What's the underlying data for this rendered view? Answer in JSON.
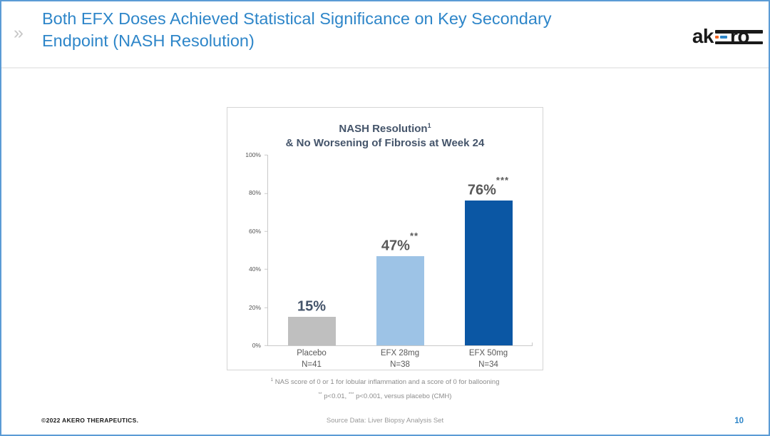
{
  "header": {
    "chevron": "»",
    "title_line1": "Both EFX Doses Achieved Statistical Significance on Key Secondary",
    "title_line2": "Endpoint (NASH Resolution)"
  },
  "logo": {
    "name": "akero",
    "prefix": "ak",
    "suffix": "ro"
  },
  "colors": {
    "slide_border": "#5B9BD5",
    "title_blue": "#2E86C9",
    "logo_orange": "#F26522",
    "logo_blue": "#2E86C9",
    "chart_title": "#44546A"
  },
  "chart_data": {
    "type": "bar",
    "title_line1": "NASH Resolution",
    "title_line1_sup": "1",
    "title_line2": "& No Worsening of Fibrosis at Week 24",
    "categories": [
      "Placebo",
      "EFX 28mg",
      "EFX 50mg"
    ],
    "n_labels": [
      "N=41",
      "N=38",
      "N=34"
    ],
    "values": [
      15,
      47,
      76
    ],
    "value_labels": [
      "15%",
      "47%",
      "76%"
    ],
    "significance": [
      "",
      "**",
      "***"
    ],
    "bar_colors": [
      "#BFBFBF",
      "#9DC3E6",
      "#0B57A4"
    ],
    "value_label_colors": [
      "#44546A",
      "#595959",
      "#595959"
    ],
    "ylabel_ticks": [
      "100%",
      "80%",
      "60%",
      "40%",
      "20%",
      "0%"
    ],
    "ylim": [
      0,
      100
    ],
    "grid": false,
    "legend": false
  },
  "footnotes": {
    "line1_sup": "1",
    "line1_text": " NAS score of 0 or 1 for lobular inflammation and a score of 0 for ballooning",
    "line2_sup1": "**",
    "line2_text1": " p<0.01, ",
    "line2_sup2": "***",
    "line2_text2": " p<0.001, versus placebo (CMH)"
  },
  "footer": {
    "copyright": "©2022 AKERO THERAPEUTICS.",
    "source": "Source Data: Liver Biopsy Analysis Set",
    "page_number": "10"
  }
}
